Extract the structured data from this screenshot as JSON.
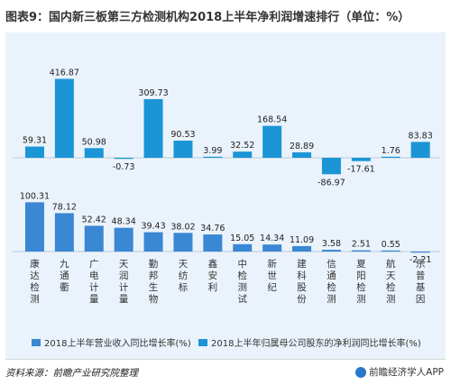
{
  "title": "图表9：国内新三板第三方检测机构2018上半年净利润增速排行（单位：%）",
  "source": "资料来源：前瞻产业研究院整理",
  "watermark": "前瞻经济学人APP",
  "colors": {
    "revenue": "#3a87d4",
    "profit": "#1b95d6",
    "background": "#eaf3fb"
  },
  "chart_data": {
    "type": "bar",
    "categories": [
      "康达检测",
      "九通衢",
      "广电计量",
      "天润计量",
      "勤邦生物",
      "天纺标",
      "鑫安利",
      "中检测试",
      "新世纪",
      "建科股份",
      "信通检测",
      "夏阳检测",
      "航天检测",
      "乐普基因"
    ],
    "category_lines": [
      [
        "康",
        "达",
        "检",
        "测"
      ],
      [
        "九",
        "通",
        "衢"
      ],
      [
        "广",
        "电",
        "计",
        "量"
      ],
      [
        "天",
        "润",
        "计",
        "量"
      ],
      [
        "勤",
        "邦",
        "生",
        "物"
      ],
      [
        "天",
        "纺",
        "标"
      ],
      [
        "鑫",
        "安",
        "利"
      ],
      [
        "中",
        "检",
        "测",
        "试"
      ],
      [
        "新",
        "世",
        "纪"
      ],
      [
        "建",
        "科",
        "股",
        "份"
      ],
      [
        "信",
        "通",
        "检",
        "测"
      ],
      [
        "夏",
        "阳",
        "检",
        "测"
      ],
      [
        "航",
        "天",
        "检",
        "测"
      ],
      [
        "乐",
        "普",
        "基",
        "因"
      ]
    ],
    "series": [
      {
        "name": "2018上半年营业收入同比增长率(%)",
        "values": [
          100.31,
          78.12,
          52.42,
          48.34,
          39.43,
          38.02,
          34.76,
          15.05,
          14.34,
          11.09,
          3.58,
          2.51,
          0.55,
          -2.21
        ]
      },
      {
        "name": "2018上半年归属母公司股东的净利润同比增长率(%)",
        "values": [
          59.31,
          416.87,
          50.98,
          -0.73,
          309.73,
          90.53,
          3.99,
          32.52,
          168.54,
          28.89,
          -86.97,
          -17.61,
          1.76,
          83.83
        ]
      }
    ],
    "value_labels": {
      "revenue": [
        "100.31",
        "78.12",
        "52.42",
        "48.34",
        "39.43",
        "38.02",
        "34.76",
        "15.05",
        "14.34",
        "11.09",
        "3.58",
        "2.51",
        "0.55",
        "-2.21"
      ],
      "profit": [
        "59.31",
        "416.87",
        "50.98",
        "-0.73",
        "309.73",
        "90.53",
        "3.99",
        "32.52",
        "168.54",
        "28.89",
        "-86.97",
        "-17.61",
        "1.76",
        "83.83"
      ]
    },
    "legend_position": "bottom",
    "grid": false
  }
}
